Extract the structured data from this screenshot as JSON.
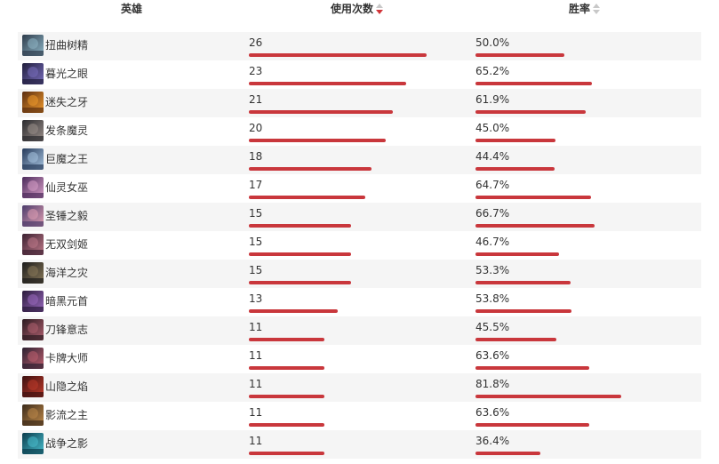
{
  "header": {
    "hero": "英雄",
    "usage": "使用次数",
    "winrate": "胜率"
  },
  "sort": {
    "column": "usage",
    "direction": "descending"
  },
  "colors": {
    "bar": "#c9373c",
    "sort_active": "#d13438",
    "row_alt": "#f5f5f5"
  },
  "chart_data": {
    "type": "table",
    "columns": [
      "英雄",
      "使用次数",
      "胜率"
    ],
    "max_usage": 26,
    "max_winrate": 81.8
  },
  "rows": [
    {
      "name": "扭曲树精",
      "uses": 26,
      "uses_text": "26",
      "winrate": 50.0,
      "winrate_text": "50.0%",
      "icon": "maokai-avatar",
      "c1": "#2d3b4a",
      "c2": "#8fb6c7"
    },
    {
      "name": "暮光之眼",
      "uses": 23,
      "uses_text": "23",
      "winrate": 65.2,
      "winrate_text": "65.2%",
      "icon": "shen-avatar",
      "c1": "#1f1d3a",
      "c2": "#7a6fbf"
    },
    {
      "name": "迷失之牙",
      "uses": 21,
      "uses_text": "21",
      "winrate": 61.9,
      "winrate_text": "61.9%",
      "icon": "gnar-avatar",
      "c1": "#5a2d10",
      "c2": "#f19a2c"
    },
    {
      "name": "发条魔灵",
      "uses": 20,
      "uses_text": "20",
      "winrate": 45.0,
      "winrate_text": "45.0%",
      "icon": "orianna-avatar",
      "c1": "#2a2a2e",
      "c2": "#9b8f8a"
    },
    {
      "name": "巨魔之王",
      "uses": 18,
      "uses_text": "18",
      "winrate": 44.4,
      "winrate_text": "44.4%",
      "icon": "trundle-avatar",
      "c1": "#263a5a",
      "c2": "#a7c4e0"
    },
    {
      "name": "仙灵女巫",
      "uses": 17,
      "uses_text": "17",
      "winrate": 64.7,
      "winrate_text": "64.7%",
      "icon": "lulu-avatar",
      "c1": "#4a2a5a",
      "c2": "#d9a0c9"
    },
    {
      "name": "圣锤之毅",
      "uses": 15,
      "uses_text": "15",
      "winrate": 66.7,
      "winrate_text": "66.7%",
      "icon": "poppy-avatar",
      "c1": "#4a3a6a",
      "c2": "#e2a1b4"
    },
    {
      "name": "无双剑姬",
      "uses": 15,
      "uses_text": "15",
      "winrate": 46.7,
      "winrate_text": "46.7%",
      "icon": "fiora-avatar",
      "c1": "#3a2030",
      "c2": "#c07a8a"
    },
    {
      "name": "海洋之灾",
      "uses": 15,
      "uses_text": "15",
      "winrate": 53.3,
      "winrate_text": "53.3%",
      "icon": "gangplank-avatar",
      "c1": "#1a1a1a",
      "c2": "#8a7a5a"
    },
    {
      "name": "暗黑元首",
      "uses": 13,
      "uses_text": "13",
      "winrate": 53.8,
      "winrate_text": "53.8%",
      "icon": "syndra-avatar",
      "c1": "#2a1a3a",
      "c2": "#9a6ac0"
    },
    {
      "name": "刀锋意志",
      "uses": 11,
      "uses_text": "11",
      "winrate": 45.5,
      "winrate_text": "45.5%",
      "icon": "irelia-avatar",
      "c1": "#2a1a20",
      "c2": "#b06070"
    },
    {
      "name": "卡牌大师",
      "uses": 11,
      "uses_text": "11",
      "winrate": 63.6,
      "winrate_text": "63.6%",
      "icon": "twisted-fate-avatar",
      "c1": "#2a2030",
      "c2": "#c06070"
    },
    {
      "name": "山隐之焰",
      "uses": 11,
      "uses_text": "11",
      "winrate": 81.8,
      "winrate_text": "81.8%",
      "icon": "ornn-avatar",
      "c1": "#3a1010",
      "c2": "#c03a2a"
    },
    {
      "name": "影流之主",
      "uses": 11,
      "uses_text": "11",
      "winrate": 63.6,
      "winrate_text": "63.6%",
      "icon": "zed-avatar",
      "c1": "#3a2a1a",
      "c2": "#c08a4a"
    },
    {
      "name": "战争之影",
      "uses": 11,
      "uses_text": "11",
      "winrate": 36.4,
      "winrate_text": "36.4%",
      "icon": "hecarim-avatar",
      "c1": "#0a3a4a",
      "c2": "#4ac0d0"
    }
  ]
}
